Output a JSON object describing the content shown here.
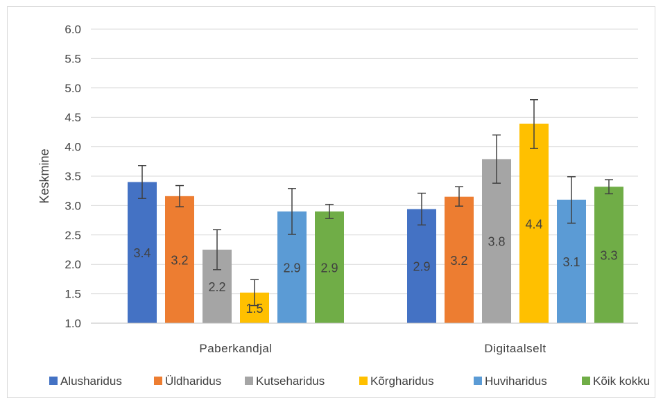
{
  "chart_data": {
    "type": "bar",
    "ylabel": "Keskmine",
    "xlabel": "",
    "ylim": [
      1.0,
      6.0
    ],
    "yticks": [
      "1.0",
      "1.5",
      "2.0",
      "2.5",
      "3.0",
      "3.5",
      "4.0",
      "4.5",
      "5.0",
      "5.5",
      "6.0"
    ],
    "categories": [
      "Paberkandjal",
      "Digitaalselt"
    ],
    "legend_position": "bottom",
    "grid": true,
    "series": [
      {
        "name": "Alusharidus",
        "color": "#4472C4",
        "values": [
          3.4,
          2.94
        ],
        "labels": [
          "3.4",
          "2.9"
        ],
        "err_low": [
          3.12,
          2.67
        ],
        "err_high": [
          3.68,
          3.21
        ]
      },
      {
        "name": "Üldharidus",
        "color": "#ED7D31",
        "values": [
          3.16,
          3.15
        ],
        "labels": [
          "3.2",
          "3.2"
        ],
        "err_low": [
          2.98,
          2.99
        ],
        "err_high": [
          3.34,
          3.32
        ]
      },
      {
        "name": "Kutseharidus",
        "color": "#A5A5A5",
        "values": [
          2.25,
          3.79
        ],
        "labels": [
          "2.2",
          "3.8"
        ],
        "err_low": [
          1.91,
          3.38
        ],
        "err_high": [
          2.59,
          4.2
        ]
      },
      {
        "name": "Kõrgharidus",
        "color": "#FFC000",
        "values": [
          1.52,
          4.39
        ],
        "labels": [
          "1.5",
          "4.4"
        ],
        "err_low": [
          1.3,
          3.97
        ],
        "err_high": [
          1.74,
          4.8
        ]
      },
      {
        "name": "Huviharidus",
        "color": "#5B9BD5",
        "values": [
          2.9,
          3.1
        ],
        "labels": [
          "2.9",
          "3.1"
        ],
        "err_low": [
          2.51,
          2.7
        ],
        "err_high": [
          3.29,
          3.49
        ]
      },
      {
        "name": "Kõik kokku",
        "color": "#70AD47",
        "values": [
          2.9,
          3.32
        ],
        "labels": [
          "2.9",
          "3.3"
        ],
        "err_low": [
          2.78,
          3.2
        ],
        "err_high": [
          3.02,
          3.44
        ]
      }
    ]
  }
}
